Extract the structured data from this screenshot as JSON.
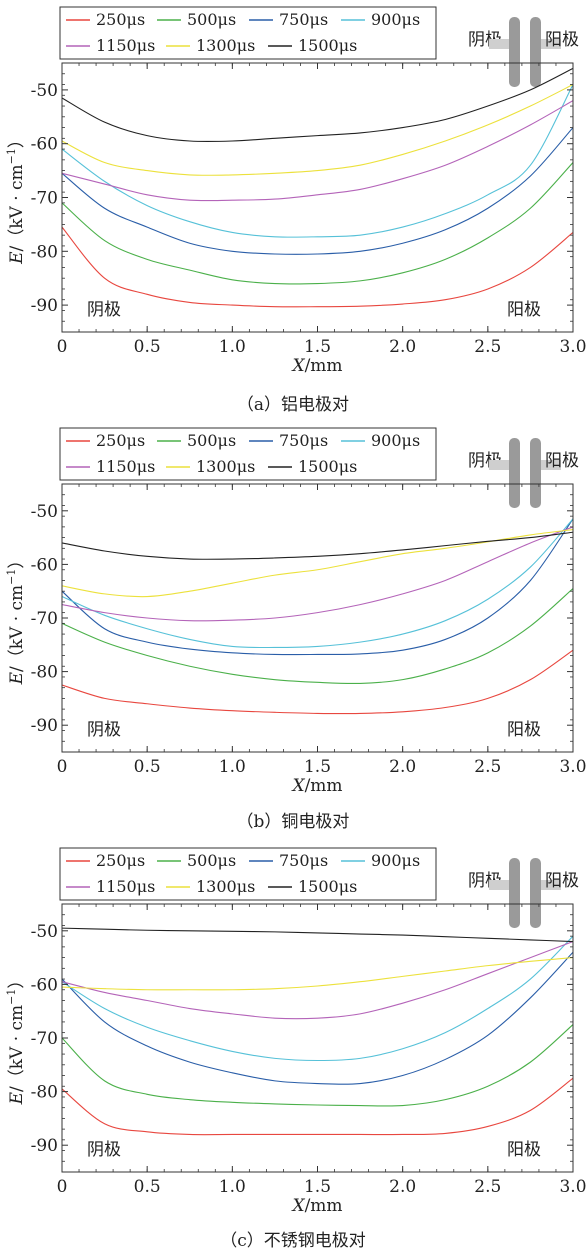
{
  "legend_entries": [
    {
      "name": "250μs",
      "color": "#e8473f"
    },
    {
      "name": "500μs",
      "color": "#4bb04a"
    },
    {
      "name": "750μs",
      "color": "#2a5ea8"
    },
    {
      "name": "900μs",
      "color": "#56c1d8"
    },
    {
      "name": "1150μs",
      "color": "#b464b9"
    },
    {
      "name": "1300μs",
      "color": "#ece13c"
    },
    {
      "name": "1500μs",
      "color": "#222222"
    }
  ],
  "electrode_icon": {
    "cathode_label": "阴极",
    "anode_label": "阳极"
  },
  "chart_data": [
    {
      "type": "line",
      "caption": "（a）铝电极对",
      "xlabel_italic": "X",
      "xlabel_rest": "/mm",
      "ylabel_italic": "E",
      "ylabel_rest": "/（kV · cm",
      "ylabel_sup": "−1",
      "ylabel_close": "）",
      "xlim": [
        0,
        3.0
      ],
      "ylim": [
        -95,
        -45
      ],
      "xticks": [
        "0",
        "0.5",
        "1.0",
        "1.5",
        "2.0",
        "2.5",
        "3.0"
      ],
      "yticks": [
        "-50",
        "-60",
        "-70",
        "-80",
        "-90"
      ],
      "ytick_values": [
        -50,
        -60,
        -70,
        -80,
        -90
      ],
      "x": [
        0,
        0.25,
        0.5,
        0.75,
        1.0,
        1.25,
        1.5,
        1.75,
        2.0,
        2.25,
        2.5,
        2.75,
        3.0
      ],
      "annotations": {
        "cathode": "阴极",
        "anode": "阳极"
      },
      "series": [
        {
          "name": "250μs",
          "values": [
            -75.5,
            -85,
            -88,
            -89.5,
            -90,
            -90.3,
            -90.3,
            -90.2,
            -89.8,
            -89,
            -87,
            -83,
            -76.5
          ]
        },
        {
          "name": "500μs",
          "values": [
            -71,
            -78,
            -81.5,
            -83.5,
            -85.3,
            -86,
            -86,
            -85.5,
            -84,
            -81.5,
            -77.5,
            -72,
            -63.5
          ]
        },
        {
          "name": "750μs",
          "values": [
            -65.5,
            -72,
            -75.5,
            -78.5,
            -80,
            -80.5,
            -80.5,
            -80,
            -78.5,
            -76,
            -72,
            -66,
            -57
          ]
        },
        {
          "name": "900μs",
          "values": [
            -61,
            -67,
            -71.5,
            -74.5,
            -76.5,
            -77.3,
            -77.3,
            -77,
            -75.5,
            -73,
            -69.5,
            -64,
            -49
          ]
        },
        {
          "name": "1150μs",
          "values": [
            -65.5,
            -67.5,
            -69.5,
            -70.5,
            -70.5,
            -70.3,
            -69.5,
            -68.5,
            -66.5,
            -64,
            -60.5,
            -56.5,
            -52
          ]
        },
        {
          "name": "1300μs",
          "values": [
            -59.5,
            -63.5,
            -65,
            -65.8,
            -65.8,
            -65.5,
            -65,
            -64,
            -62,
            -59.5,
            -56.5,
            -53,
            -49
          ]
        },
        {
          "name": "1500μs",
          "values": [
            -51.5,
            -56,
            -58.5,
            -59.5,
            -59.5,
            -59,
            -58.5,
            -58,
            -57,
            -55.5,
            -53,
            -50,
            -46
          ]
        }
      ]
    },
    {
      "type": "line",
      "caption": "（b）铜电极对",
      "xlabel_italic": "X",
      "xlabel_rest": "/mm",
      "ylabel_italic": "E",
      "ylabel_rest": "/（kV · cm",
      "ylabel_sup": "−1",
      "ylabel_close": "）",
      "xlim": [
        0,
        3.0
      ],
      "ylim": [
        -95,
        -45
      ],
      "xticks": [
        "0",
        "0.5",
        "1.0",
        "1.5",
        "2.0",
        "2.5",
        "3.0"
      ],
      "yticks": [
        "-50",
        "-60",
        "-70",
        "-80",
        "-90"
      ],
      "ytick_values": [
        -50,
        -60,
        -70,
        -80,
        -90
      ],
      "x": [
        0,
        0.25,
        0.5,
        0.75,
        1.0,
        1.25,
        1.5,
        1.75,
        2.0,
        2.25,
        2.5,
        2.75,
        3.0
      ],
      "annotations": {
        "cathode": "阴极",
        "anode": "阳极"
      },
      "series": [
        {
          "name": "250μs",
          "values": [
            -82.5,
            -85,
            -86,
            -86.8,
            -87.3,
            -87.6,
            -87.8,
            -87.8,
            -87.5,
            -86.7,
            -85,
            -81.5,
            -76
          ]
        },
        {
          "name": "500μs",
          "values": [
            -71,
            -74.5,
            -77,
            -79,
            -80.5,
            -81.5,
            -82,
            -82.2,
            -81.5,
            -79.5,
            -76.5,
            -71.5,
            -64.5
          ]
        },
        {
          "name": "750μs",
          "values": [
            -65,
            -72,
            -74.5,
            -75.8,
            -76.5,
            -76.8,
            -76.8,
            -76.7,
            -76,
            -74,
            -70,
            -63,
            -51.5
          ]
        },
        {
          "name": "900μs",
          "values": [
            -66,
            -69.5,
            -72,
            -74,
            -75.3,
            -75.5,
            -75.3,
            -74.5,
            -73,
            -70.5,
            -66.5,
            -60.5,
            -51.5
          ]
        },
        {
          "name": "1150μs",
          "values": [
            -67.5,
            -69,
            -70,
            -70.5,
            -70.4,
            -70,
            -69,
            -67.5,
            -65.5,
            -63,
            -59.5,
            -56,
            -53
          ]
        },
        {
          "name": "1300μs",
          "values": [
            -64,
            -65.5,
            -66,
            -65,
            -63.5,
            -62,
            -61,
            -59.5,
            -58,
            -57,
            -55.8,
            -54.5,
            -53.5
          ]
        },
        {
          "name": "1500μs",
          "values": [
            -56,
            -57.5,
            -58.5,
            -59,
            -59,
            -58.8,
            -58.5,
            -58,
            -57.3,
            -56.5,
            -55.7,
            -55,
            -54
          ]
        }
      ]
    },
    {
      "type": "line",
      "caption": "（c）不锈钢电极对",
      "xlabel_italic": "X",
      "xlabel_rest": "/mm",
      "ylabel_italic": "E",
      "ylabel_rest": "/（kV · cm",
      "ylabel_sup": "−1",
      "ylabel_close": "）",
      "xlim": [
        0,
        3.0
      ],
      "ylim": [
        -95,
        -45
      ],
      "xticks": [
        "0",
        "0.5",
        "1.0",
        "1.5",
        "2.0",
        "2.5",
        "3.0"
      ],
      "yticks": [
        "-50",
        "-60",
        "-70",
        "-80",
        "-90"
      ],
      "ytick_values": [
        -50,
        -60,
        -70,
        -80,
        -90
      ],
      "x": [
        0,
        0.25,
        0.5,
        0.75,
        1.0,
        1.25,
        1.5,
        1.75,
        2.0,
        2.25,
        2.5,
        2.75,
        3.0
      ],
      "annotations": {
        "cathode": "阴极",
        "anode": "阳极"
      },
      "series": [
        {
          "name": "250μs",
          "values": [
            -79.5,
            -86,
            -87.5,
            -88,
            -88,
            -88,
            -88,
            -88,
            -88,
            -87.8,
            -86.5,
            -83.5,
            -77.5
          ]
        },
        {
          "name": "500μs",
          "values": [
            -70,
            -78,
            -80.5,
            -81.5,
            -82,
            -82.3,
            -82.5,
            -82.6,
            -82.6,
            -81.5,
            -79,
            -74.5,
            -67.5
          ]
        },
        {
          "name": "750μs",
          "values": [
            -59,
            -67,
            -71.5,
            -74.5,
            -76.5,
            -78,
            -78.5,
            -78.5,
            -77,
            -74,
            -69.5,
            -62.5,
            -54
          ]
        },
        {
          "name": "900μs",
          "values": [
            -59.5,
            -64.5,
            -68,
            -70.5,
            -72.5,
            -73.8,
            -74.2,
            -73.8,
            -72,
            -69,
            -64.5,
            -59,
            -51
          ]
        },
        {
          "name": "1150μs",
          "values": [
            -59.5,
            -61.5,
            -63,
            -64.5,
            -65.5,
            -66.3,
            -66.3,
            -65.5,
            -63.5,
            -61,
            -58,
            -55,
            -52
          ]
        },
        {
          "name": "1300μs",
          "values": [
            -60.5,
            -60.8,
            -61,
            -61,
            -61,
            -60.8,
            -60.3,
            -59.5,
            -58.5,
            -57.5,
            -56.5,
            -55.7,
            -55
          ]
        },
        {
          "name": "1500μs",
          "values": [
            -49.5,
            -49.7,
            -49.9,
            -50,
            -50.1,
            -50.2,
            -50.4,
            -50.6,
            -50.8,
            -51.1,
            -51.4,
            -51.7,
            -52
          ]
        }
      ]
    }
  ]
}
